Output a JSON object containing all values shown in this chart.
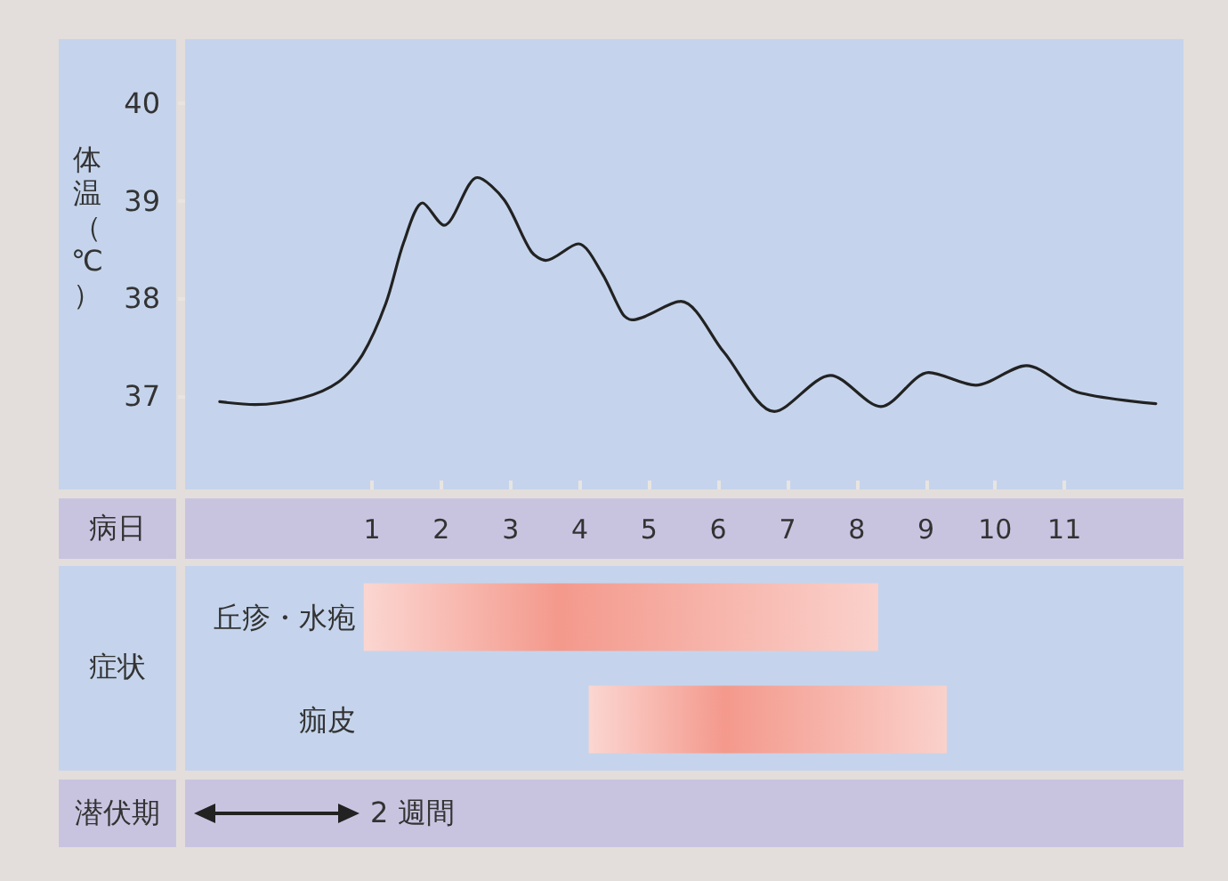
{
  "chart_data": [
    {
      "type": "line",
      "xlabel": "病日",
      "ylabel": "体温（℃）",
      "x": [
        -1.2,
        -0.69,
        0,
        0.51,
        0.86,
        1.2,
        1.46,
        1.73,
        2.04,
        2.52,
        2.91,
        3.3,
        3.51,
        3.98,
        4.32,
        4.62,
        4.75,
        5.46,
        6.08,
        6.81,
        7.62,
        8.35,
        9.04,
        9.72,
        10.45,
        11.18,
        12.32
      ],
      "series": [
        {
          "color": "#222222",
          "values": [
            36.94,
            36.91,
            36.98,
            37.14,
            37.42,
            37.95,
            38.58,
            38.98,
            38.75,
            39.24,
            39.01,
            38.48,
            38.39,
            38.56,
            38.26,
            37.84,
            37.78,
            37.97,
            37.45,
            36.84,
            37.21,
            36.89,
            37.24,
            37.11,
            37.31,
            37.04,
            36.92
          ]
        }
      ],
      "xlim": [
        -1.7,
        12.72
      ],
      "xticks": [
        1,
        2,
        3,
        4,
        5,
        6,
        7,
        8,
        9,
        10,
        11
      ],
      "ylim": [
        36.04,
        40.66
      ],
      "yticks": [
        37,
        38,
        39,
        40
      ],
      "marker": "none",
      "line_style": "solid"
    },
    {
      "type": "bar",
      "orientation": "horizontal",
      "ylabel": "症状",
      "categories": [
        "丘疹・水疱",
        "痂皮"
      ],
      "base": [
        0.88,
        4.13
      ],
      "values": [
        7.43,
        5.17
      ],
      "colors": [
        "#f4998c",
        "#f4998c"
      ],
      "xlim": [
        -1.7,
        12.72
      ],
      "tick_labels": "y",
      "annotations": [
        "潜伏期",
        "2 週間"
      ]
    }
  ]
}
